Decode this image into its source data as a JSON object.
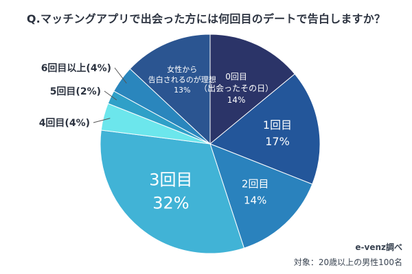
{
  "header": {
    "title": "Q.マッチングアプリで出会った方には何回目のデートで告白しますか？"
  },
  "footer": {
    "source": "e-venz調べ",
    "note": "対象：20歳以上の男性100名"
  },
  "chart_data": {
    "type": "pie",
    "title": "Q.マッチングアプリで出会った方には何回目のデートで告白しますか？",
    "categories": [
      "0回目（出会ったその日）",
      "1回目",
      "2回目",
      "3回目",
      "4回目",
      "5回目",
      "6回目以上",
      "女性から告白されるのが理想"
    ],
    "slices": [
      {
        "label_lines": [
          "0回目",
          "（出会ったその日）"
        ],
        "value_label": "14%",
        "value": 14,
        "color": "#2b3468",
        "label_placement": "inside"
      },
      {
        "label_lines": [
          "1回目"
        ],
        "value_label": "17%",
        "value": 17,
        "color": "#23569a",
        "label_placement": "inside"
      },
      {
        "label_lines": [
          "2回目"
        ],
        "value_label": "14%",
        "value": 14,
        "color": "#2a82bd",
        "label_placement": "inside"
      },
      {
        "label_lines": [
          "3回目"
        ],
        "value_label": "32%",
        "value": 32,
        "color": "#41b3d6",
        "label_placement": "inside"
      },
      {
        "label_lines": [
          "4回目(4%)"
        ],
        "value_label": "",
        "value": 4,
        "color": "#6ce6ec",
        "label_placement": "outside"
      },
      {
        "label_lines": [
          "5回目(2%)"
        ],
        "value_label": "",
        "value": 2,
        "color": "#2fa0c8",
        "label_placement": "outside"
      },
      {
        "label_lines": [
          "6回目以上(4%)"
        ],
        "value_label": "",
        "value": 4,
        "color": "#2a86bd",
        "label_placement": "outside"
      },
      {
        "label_lines": [
          "女性から",
          "告白されるのが理想"
        ],
        "value_label": "13%",
        "value": 13,
        "color": "#2b5591",
        "label_placement": "inside"
      }
    ]
  }
}
